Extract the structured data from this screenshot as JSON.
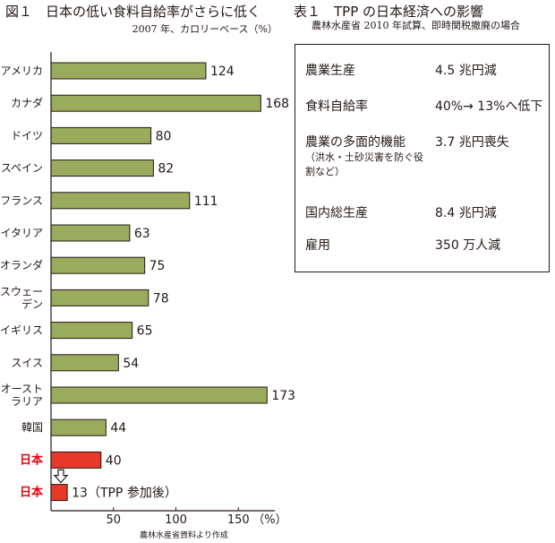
{
  "figure": {
    "title": "図１　日本の低い食料自給率がさらに低く",
    "subtitle": "2007 年、カロリーベース（%）",
    "source": "農林水産省資料より作成"
  },
  "chart_data": {
    "type": "bar",
    "orientation": "horizontal",
    "categories": [
      "アメリカ",
      "カナダ",
      "ドイツ",
      "スペイン",
      "フランス",
      "イタリア",
      "オランダ",
      "スウェーデン",
      "イギリス",
      "スイス",
      "オーストラリア",
      "韓国",
      "日本",
      "日本"
    ],
    "category_lines": [
      [
        "アメリカ"
      ],
      [
        "カナダ"
      ],
      [
        "ドイツ"
      ],
      [
        "スペイン"
      ],
      [
        "フランス"
      ],
      [
        "イタリア"
      ],
      [
        "オランダ"
      ],
      [
        "スウェー",
        "デン"
      ],
      [
        "イギリス"
      ],
      [
        "スイス"
      ],
      [
        "オースト",
        "ラリア"
      ],
      [
        "韓国"
      ],
      [
        "日本"
      ],
      [
        "日本"
      ]
    ],
    "values": [
      124,
      168,
      80,
      82,
      111,
      63,
      75,
      78,
      65,
      54,
      173,
      44,
      40,
      13
    ],
    "value_labels": [
      "124",
      "168",
      "80",
      "82",
      "111",
      "63",
      "75",
      "78",
      "65",
      "54",
      "173",
      "44",
      "40",
      "13（TPP 参加後）"
    ],
    "highlight": [
      false,
      false,
      false,
      false,
      false,
      false,
      false,
      false,
      false,
      false,
      false,
      false,
      true,
      true
    ],
    "colors": {
      "bar": "#9aab5e",
      "highlight": "#e83828",
      "highlight_text": "#e60012",
      "stroke": "#231815"
    },
    "xticks": [
      50,
      100,
      150
    ],
    "xunit": "（%）",
    "xlim": [
      0,
      190
    ],
    "grid": false,
    "arrow_between": [
      12,
      13
    ]
  },
  "table": {
    "title": "表１　TPP の日本経済への影響",
    "subtitle": "農林水産省 2010 年試算、即時関税撤廃の場合",
    "rows": [
      {
        "label": "農業生産",
        "value": "4.5 兆円減",
        "note": ""
      },
      {
        "label": "食料自給率",
        "value": "40%→ 13%へ低下",
        "note": ""
      },
      {
        "label": "農業の多面的機能",
        "value": "3.7 兆円喪失",
        "note": "（洪水・土砂災害を防ぐ役割など）"
      },
      {
        "label": "国内総生産",
        "value": "8.4 兆円減",
        "note": ""
      },
      {
        "label": "雇用",
        "value": "350 万人減",
        "note": ""
      }
    ]
  }
}
